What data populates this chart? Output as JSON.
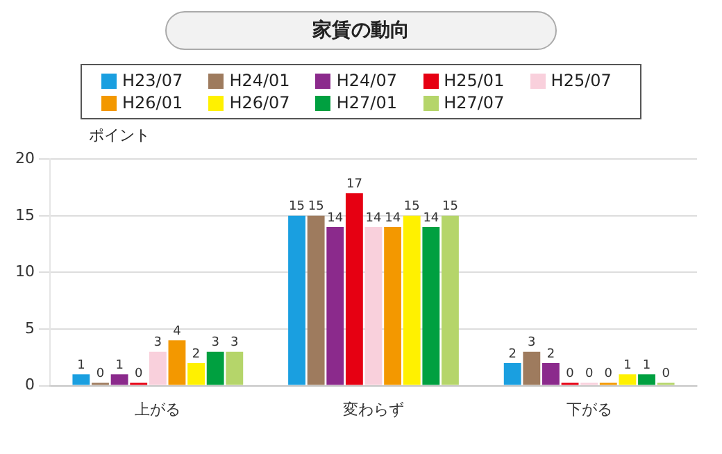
{
  "chart_data": {
    "type": "bar",
    "title": "家賃の動向",
    "ylabel": "ポイント",
    "categories": [
      "上がる",
      "変わらず",
      "下がる"
    ],
    "series": [
      {
        "name": "H23/07",
        "color": "#1a9fe0",
        "values": [
          1,
          15,
          2
        ]
      },
      {
        "name": "H24/01",
        "color": "#9e7b5e",
        "values": [
          0,
          15,
          3
        ]
      },
      {
        "name": "H24/07",
        "color": "#8b2a8c",
        "values": [
          1,
          14,
          2
        ]
      },
      {
        "name": "H25/01",
        "color": "#e60012",
        "values": [
          0,
          17,
          0
        ]
      },
      {
        "name": "H25/07",
        "color": "#f9d0dc",
        "values": [
          3,
          14,
          0
        ]
      },
      {
        "name": "H26/01",
        "color": "#f39800",
        "values": [
          4,
          14,
          0
        ]
      },
      {
        "name": "H26/07",
        "color": "#fff100",
        "values": [
          2,
          15,
          1
        ]
      },
      {
        "name": "H27/01",
        "color": "#00a040",
        "values": [
          3,
          14,
          1
        ]
      },
      {
        "name": "H27/07",
        "color": "#b5d56a",
        "values": [
          3,
          15,
          0
        ]
      }
    ],
    "ylim": [
      0,
      20
    ],
    "yticks": [
      0,
      5,
      10,
      15,
      20
    ],
    "grid": "y",
    "legend": "top",
    "data_labels": true
  }
}
